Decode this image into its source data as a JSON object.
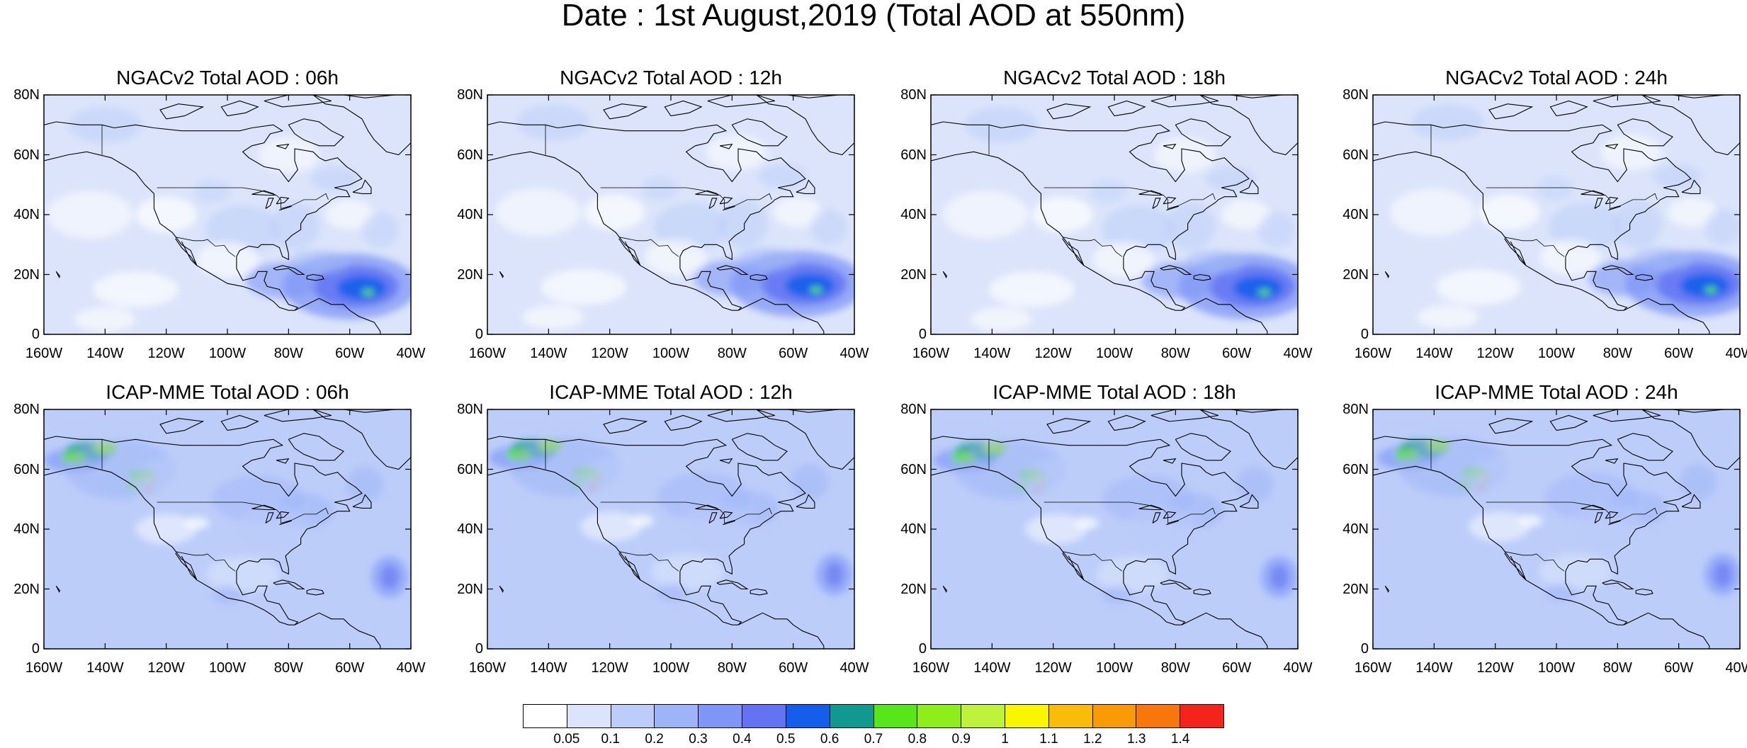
{
  "figure": {
    "title": "Date : 1st August,2019 (Total AOD at 550nm)"
  },
  "panels": [
    {
      "title": "NGACv2 Total AOD : 06h",
      "model": "NGACv2",
      "hour": "06h"
    },
    {
      "title": "NGACv2 Total AOD : 12h",
      "model": "NGACv2",
      "hour": "12h"
    },
    {
      "title": "NGACv2 Total AOD : 18h",
      "model": "NGACv2",
      "hour": "18h"
    },
    {
      "title": "NGACv2 Total AOD : 24h",
      "model": "NGACv2",
      "hour": "24h"
    },
    {
      "title": "ICAP-MME Total AOD : 06h",
      "model": "ICAP-MME",
      "hour": "06h"
    },
    {
      "title": "ICAP-MME Total AOD : 12h",
      "model": "ICAP-MME",
      "hour": "12h"
    },
    {
      "title": "ICAP-MME Total AOD : 18h",
      "model": "ICAP-MME",
      "hour": "18h"
    },
    {
      "title": "ICAP-MME Total AOD : 24h",
      "model": "ICAP-MME",
      "hour": "24h"
    }
  ],
  "axes": {
    "lat_ticks": [
      "80N",
      "60N",
      "40N",
      "20N",
      "0"
    ],
    "lon_ticks": [
      "160W",
      "140W",
      "120W",
      "100W",
      "80W",
      "60W",
      "40W"
    ],
    "lat_range": [
      0,
      80
    ],
    "lon_range": [
      -160,
      -40
    ]
  },
  "colorbar": {
    "labels": [
      "0.05",
      "0.1",
      "0.2",
      "0.3",
      "0.4",
      "0.5",
      "0.6",
      "0.7",
      "0.8",
      "0.9",
      "1",
      "1.1",
      "1.2",
      "1.3",
      "1.4"
    ],
    "colors": [
      "#ffffff",
      "#dbe4fb",
      "#bccdfa",
      "#9eb4f8",
      "#8096f6",
      "#6373f2",
      "#155eec",
      "#109a8f",
      "#56e619",
      "#8fee1a",
      "#bff23b",
      "#faf600",
      "#f9bc08",
      "#f99b06",
      "#f8770c",
      "#f4241c"
    ]
  },
  "colors": {
    "background_field": "#dbe4fb",
    "moderate_field": "#bccdfa",
    "coastline": "#000000"
  }
}
